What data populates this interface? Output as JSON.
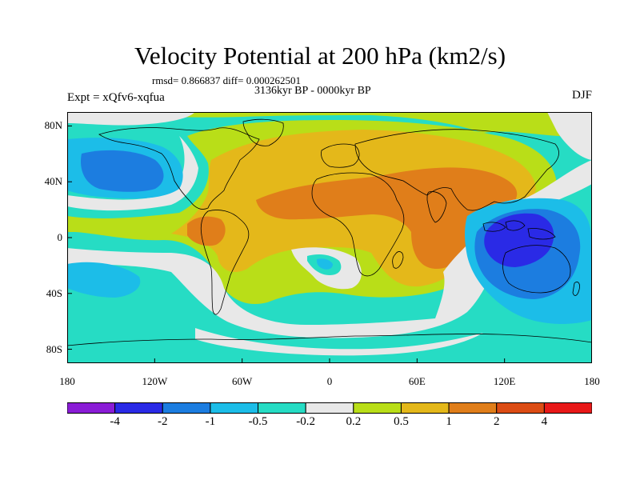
{
  "title": "Velocity Potential at 200 hPa (km2/s)",
  "stats_line": "rmsd= 0.866837 diff= 0.000262501",
  "period_line": "3136kyr BP - 0000kyr BP",
  "experiment_label": "Expt = xQfv6-xqfua",
  "season_label": "DJF",
  "map": {
    "projection": "cylindrical-equidistant",
    "lon_range": [
      -180,
      180
    ],
    "lat_range": [
      -90,
      90
    ],
    "y_ticks": [
      {
        "lat": 80,
        "label": "80N"
      },
      {
        "lat": 40,
        "label": "40N"
      },
      {
        "lat": 0,
        "label": "0"
      },
      {
        "lat": -40,
        "label": "40S"
      },
      {
        "lat": -80,
        "label": "80S"
      }
    ],
    "x_ticks": [
      {
        "lon": -180,
        "label": "180"
      },
      {
        "lon": -120,
        "label": "120W"
      },
      {
        "lon": -60,
        "label": "60W"
      },
      {
        "lon": 0,
        "label": "0"
      },
      {
        "lon": 60,
        "label": "60E"
      },
      {
        "lon": 120,
        "label": "120E"
      },
      {
        "lon": 180,
        "label": "180"
      }
    ]
  },
  "colorbar": {
    "colors": [
      "#8a1cd6",
      "#2a2ae6",
      "#1c7de0",
      "#1cbde8",
      "#26dcc4",
      "#e8e8e8",
      "#b9de18",
      "#e4b81a",
      "#e07e1a",
      "#dc4c14",
      "#e81818"
    ],
    "labels": [
      "-4",
      "-2",
      "-1",
      "-0.5",
      "-0.2",
      "0.2",
      "0.5",
      "1",
      "2",
      "4"
    ]
  },
  "legend_colors": {
    "strong_negative": "#2a2ae6",
    "negative": "#1c7de0",
    "weak_negative": "#1cbde8",
    "slight_negative": "#26dcc4",
    "near_zero": "#e8e8e8",
    "slight_positive": "#b9de18",
    "weak_positive": "#e4b81a",
    "positive": "#e07e1a"
  }
}
